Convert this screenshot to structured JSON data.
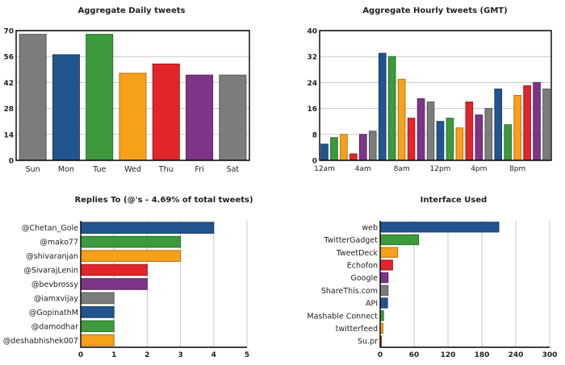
{
  "chart_data": [
    {
      "id": "daily",
      "type": "bar",
      "title": "Aggregate Daily tweets",
      "categories": [
        "Sun",
        "Mon",
        "Tue",
        "Wed",
        "Thu",
        "Fri",
        "Sat"
      ],
      "values": [
        68,
        57,
        68,
        47,
        52,
        46,
        46
      ],
      "colors": [
        "#7b7d7b",
        "#22558f",
        "#3c9a3c",
        "#f7a11a",
        "#e1252b",
        "#7e3487",
        "#7b7d7b"
      ],
      "ylim": [
        0,
        70
      ],
      "yticks": [
        0,
        14,
        28,
        42,
        56,
        70
      ],
      "grid": true
    },
    {
      "id": "hourly",
      "type": "bar",
      "title": "Aggregate Hourly tweets (GMT)",
      "categories": [
        "0",
        "1",
        "2",
        "3",
        "4",
        "5",
        "6",
        "7",
        "8",
        "9",
        "10",
        "11",
        "12",
        "13",
        "14",
        "15",
        "16",
        "17",
        "18",
        "19",
        "20",
        "21",
        "22",
        "23"
      ],
      "x_tick_labels": [
        {
          "index": 0,
          "label": "12am"
        },
        {
          "index": 4,
          "label": "4am"
        },
        {
          "index": 8,
          "label": "8am"
        },
        {
          "index": 12,
          "label": "12pm"
        },
        {
          "index": 16,
          "label": "4pm"
        },
        {
          "index": 20,
          "label": "8pm"
        }
      ],
      "values": [
        5,
        7,
        8,
        2,
        8,
        9,
        33,
        32,
        25,
        13,
        19,
        18,
        12,
        13,
        10,
        18,
        14,
        16,
        22,
        11,
        20,
        23,
        24,
        22
      ],
      "colors": [
        "#22558f",
        "#3c9a3c",
        "#f7a11a",
        "#e1252b",
        "#7e3487",
        "#7b7d7b"
      ],
      "ylim": [
        0,
        40
      ],
      "yticks": [
        0,
        8,
        16,
        24,
        32,
        40
      ],
      "grid": true
    },
    {
      "id": "replies",
      "type": "bar",
      "orientation": "horizontal",
      "title": "Replies To (@'s - 4.69% of total tweets)",
      "categories": [
        "@Chetan_Gole",
        "@mako77",
        "@shivaranjan",
        "@SivarajLenin",
        "@bevbrossy",
        "@iamxvijay",
        "@GopinathM",
        "@damodhar",
        "@deshabhishek007"
      ],
      "values": [
        4,
        3,
        3,
        2,
        2,
        1,
        1,
        1,
        1
      ],
      "colors": [
        "#22558f",
        "#3c9a3c",
        "#f7a11a",
        "#e1252b",
        "#7e3487",
        "#7b7d7b"
      ],
      "xlim": [
        0,
        5
      ],
      "xticks": [
        0,
        1,
        2,
        3,
        4,
        5
      ],
      "grid": true
    },
    {
      "id": "interface",
      "type": "bar",
      "orientation": "horizontal",
      "title": "Interface Used",
      "categories": [
        "web",
        "TwitterGadget",
        "TweetDeck",
        "Echofon",
        "Google",
        "ShareThis.com",
        "API",
        "Mashable Connect",
        "twitterfeed",
        "Su.pr"
      ],
      "values": [
        210,
        68,
        31,
        22,
        14,
        14,
        13,
        6,
        5,
        2
      ],
      "colors": [
        "#22558f",
        "#3c9a3c",
        "#f7a11a",
        "#e1252b",
        "#7e3487",
        "#7b7d7b"
      ],
      "xlim": [
        0,
        300
      ],
      "xticks": [
        0,
        60,
        120,
        180,
        240,
        300
      ],
      "grid": true
    }
  ]
}
